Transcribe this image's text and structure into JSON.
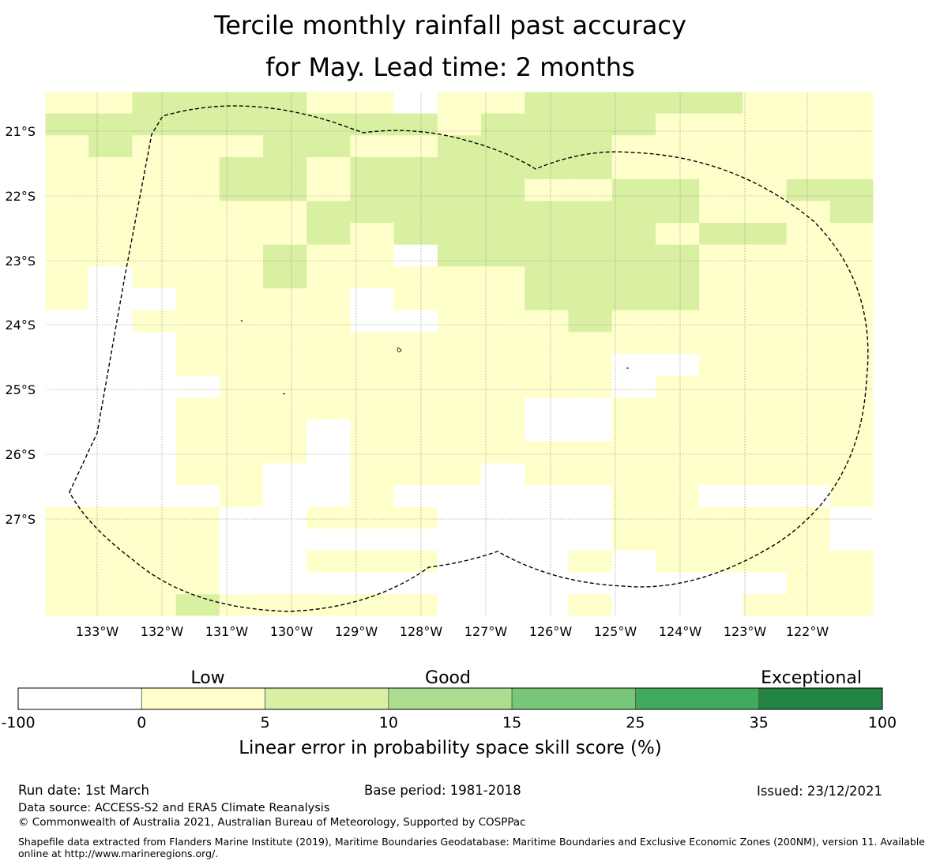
{
  "title": {
    "line1": "Tercile monthly rainfall past accuracy",
    "line2": "for May. Lead time: 2 months"
  },
  "map": {
    "lat_labels": [
      "21°S",
      "22°S",
      "23°S",
      "24°S",
      "25°S",
      "26°S",
      "27°S"
    ],
    "lon_labels": [
      "133°W",
      "132°W",
      "131°W",
      "130°W",
      "129°W",
      "128°W",
      "127°W",
      "126°W",
      "125°W",
      "124°W",
      "123°W",
      "122°W"
    ],
    "grid": [
      "AABBBBAA.AABBBBBAAA",
      "BBBBBBBBBABBBBAAAAA",
      "ABAAABBAABBBBAAAAAA",
      "AAAABBABBBBBBAAAAAA",
      "AAAABBABBBBAABBAABB",
      "AAAAAABBBBBBBBBAAAB",
      "AAAAAABABBBBBBABBAA",
      "AAAAABAA.BBBBBBAAAA",
      "A.AAABAAAAABBBBAAAA",
      "A..AAAA.AAABBBBAAAA",
      "..AAAAA..AAABAAAAAA",
      "...AAAAAAAAAAAAAAAA",
      "...AAAAAAAAAA..AAAA",
      "....AAAAAAAAA.AAAAA",
      "...AAAAAAAA..AAAAAA",
      "...AAA.AAAA..AAAAAA",
      "...AAA.AAAAAAAAAAAA",
      "...AA..AAA.AAAAAAAA",
      "....A..A.....AA...A",
      "AAAA..AAA....AAAAA.",
      "AAAA.........AAAAA.",
      "AAAA..AAA...A.AAAAA",
      "AAAA.............AA",
      "AAABAAAAA...A...AAA"
    ]
  },
  "legend": {
    "categories": [
      "Low",
      "Good",
      "Exceptional"
    ],
    "tick_labels": [
      "-100",
      "0",
      "5",
      "10",
      "15",
      "25",
      "35",
      "100"
    ],
    "colors": [
      "#ffffff",
      "#ffffcc",
      "#d9f0a3",
      "#addd8e",
      "#78c679",
      "#41ab5d",
      "#238443"
    ],
    "label": "Linear error in probability space skill score (%)"
  },
  "footer": {
    "run_date": "Run date: 1st March",
    "base_period": "Base period: 1981-2018",
    "issued": "Issued: 23/12/2021",
    "data_source": "Data source: ACCESS-S2 and ERA5 Climate Reanalysis",
    "copyright": "© Commonwealth of Australia 2021, Australian Bureau of Meteorology, Supported by COSPPac",
    "shapefile_line1": "Shapefile data extracted from Flanders Marine Institute (2019), Maritime Boundaries Geodatabase: Maritime Boundaries and Exclusive Economic Zones (200NM), version 11. Available",
    "shapefile_line2": "online at http://www.marineregions.org/."
  }
}
